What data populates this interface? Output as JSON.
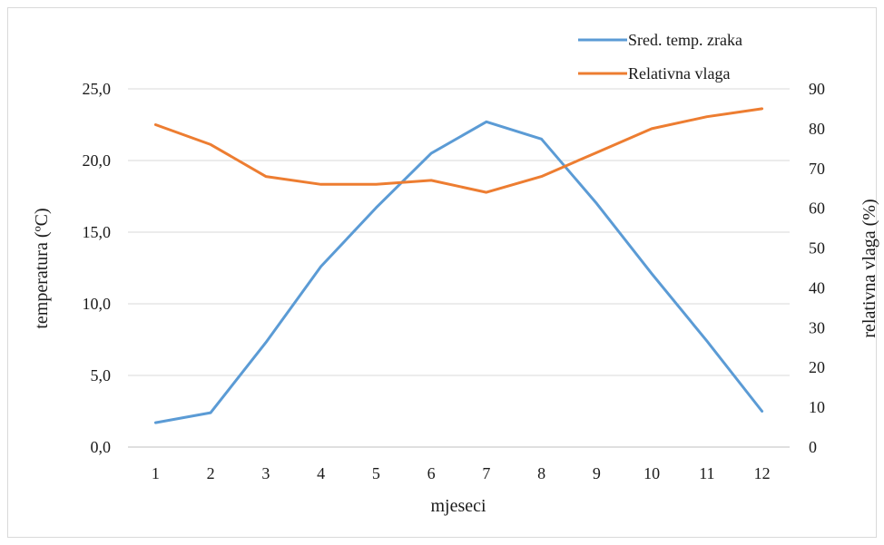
{
  "chart_data": {
    "type": "line",
    "x": [
      1,
      2,
      3,
      4,
      5,
      6,
      7,
      8,
      9,
      10,
      11,
      12
    ],
    "xlabel": "mjeseci",
    "y_left": {
      "label": "temperatura (ºC)",
      "ylim": [
        0,
        25
      ],
      "ticks": [
        "0,0",
        "5,0",
        "10,0",
        "15,0",
        "20,0",
        "25,0"
      ],
      "tick_values": [
        0,
        5,
        10,
        15,
        20,
        25
      ]
    },
    "y_right": {
      "label": "relativna vlaga (%)",
      "ylim": [
        0,
        90
      ],
      "ticks": [
        "0",
        "10",
        "20",
        "30",
        "40",
        "50",
        "60",
        "70",
        "80",
        "90"
      ],
      "tick_values": [
        0,
        10,
        20,
        30,
        40,
        50,
        60,
        70,
        80,
        90
      ]
    },
    "grid": true,
    "legend_position": "top-right",
    "series": [
      {
        "name": "Sred. temp. zraka",
        "axis": "left",
        "color": "#5b9bd5",
        "values": [
          1.7,
          2.4,
          7.3,
          12.6,
          16.7,
          20.5,
          22.7,
          21.5,
          17.0,
          12.1,
          7.4,
          2.5
        ]
      },
      {
        "name": "Relativna vlaga",
        "axis": "right",
        "color": "#ed7d31",
        "values": [
          81,
          76,
          68,
          66,
          66,
          67,
          64,
          68,
          74,
          80,
          83,
          85
        ]
      }
    ]
  }
}
